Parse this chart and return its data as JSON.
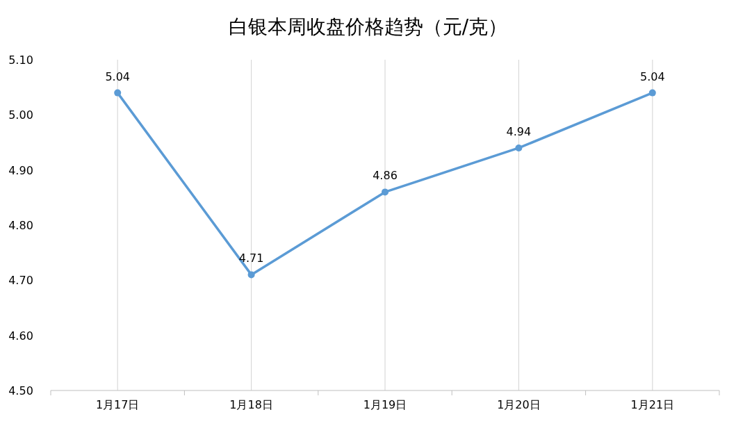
{
  "chart_data": {
    "type": "line",
    "title": "白银本周收盘价格趋势（元/克）",
    "categories": [
      "1月17日",
      "1月18日",
      "1月19日",
      "1月20日",
      "1月21日"
    ],
    "series": [
      {
        "color": "#5b9bd5",
        "values": [
          5.04,
          4.71,
          4.86,
          4.94,
          5.04
        ]
      }
    ],
    "ylim": [
      4.5,
      5.1
    ],
    "yticks": [
      {
        "value": 4.5,
        "label": "4.50"
      },
      {
        "value": 4.6,
        "label": "4.60"
      },
      {
        "value": 4.7,
        "label": "4.70"
      },
      {
        "value": 4.8,
        "label": "4.80"
      },
      {
        "value": 4.9,
        "label": "4.90"
      },
      {
        "value": 5.0,
        "label": "5.00"
      },
      {
        "value": 5.1,
        "label": "5.10"
      }
    ],
    "grid": "x",
    "marker": "circle",
    "line_style": "solid",
    "data_labels": true
  }
}
